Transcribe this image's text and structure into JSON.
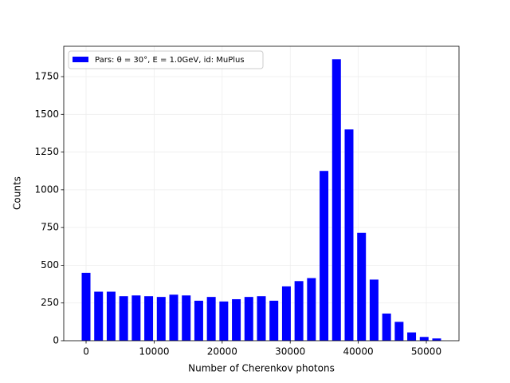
{
  "chart_data": {
    "type": "histogram",
    "xlabel": "Number of Cherenkov photons",
    "ylabel": "Counts",
    "bins": [
      -920,
      920,
      2760,
      4600,
      6440,
      8280,
      10120,
      11960,
      13800,
      15640,
      17480,
      19320,
      21160,
      23000,
      24840,
      26680,
      28520,
      30360,
      32200,
      34040,
      35880,
      37720,
      39560,
      41400,
      43240,
      45080,
      46920,
      48760,
      50600,
      52440
    ],
    "series": [
      {
        "name": "Pars: θ = 30°, E = 1.0GeV, id: MuPlus",
        "color": "#0000ff",
        "values": [
          450,
          325,
          325,
          295,
          300,
          295,
          290,
          305,
          300,
          265,
          290,
          260,
          275,
          290,
          295,
          265,
          360,
          395,
          415,
          1125,
          1865,
          1400,
          715,
          405,
          180,
          125,
          55,
          25,
          15
        ]
      }
    ],
    "xlim": [
      -3280,
      54800
    ],
    "xticks": [
      0,
      10000,
      20000,
      30000,
      40000,
      50000
    ],
    "ylim": [
      0,
      1951
    ],
    "yticks": [
      0,
      250,
      500,
      750,
      1000,
      1250,
      1500,
      1750
    ],
    "grid": true,
    "legend": "upper left"
  }
}
